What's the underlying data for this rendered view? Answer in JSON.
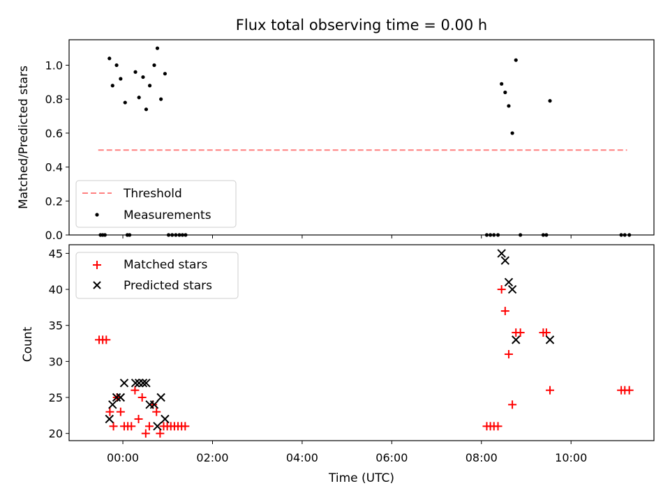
{
  "colors": {
    "threshold": "#ff7f7f",
    "measurement": "#000000",
    "matched": "#ff0000",
    "predicted": "#000000"
  },
  "chart_data": [
    {
      "type": "scatter",
      "title": "Flux total observing time = 0.00 h",
      "ylabel": "Matched/Predicted stars",
      "xlabel": "",
      "xlim": [
        -1.2,
        11.85
      ],
      "ylim": [
        0,
        1.15
      ],
      "yticks": [
        0.0,
        0.2,
        0.4,
        0.6,
        0.8,
        1.0
      ],
      "ytick_labels": [
        "0.0",
        "0.2",
        "0.4",
        "0.6",
        "0.8",
        "1.0"
      ],
      "xticks": [
        0,
        2,
        4,
        6,
        8,
        10
      ],
      "legend_position": "lower-left",
      "series": [
        {
          "name": "Threshold",
          "kind": "line",
          "style": "dashed",
          "x": [
            -0.55,
            11.25
          ],
          "y": [
            0.5,
            0.5
          ]
        },
        {
          "name": "Measurements",
          "kind": "dots",
          "x": [
            -0.5,
            -0.45,
            -0.4,
            -0.3,
            -0.23,
            -0.14,
            -0.05,
            0.05,
            0.1,
            0.15,
            0.28,
            0.36,
            0.45,
            0.52,
            0.6,
            0.7,
            0.77,
            0.85,
            0.94,
            1.02,
            1.1,
            1.18,
            1.26,
            1.33,
            1.4,
            8.12,
            8.2,
            8.28,
            8.37,
            8.45,
            8.53,
            8.61,
            8.69,
            8.77,
            8.87,
            9.38,
            9.45,
            9.53,
            11.12,
            11.2,
            11.3
          ],
          "y": [
            0,
            0,
            0,
            1.04,
            0.88,
            1.0,
            0.92,
            0.78,
            0,
            0,
            0.96,
            0.81,
            0.93,
            0.74,
            0.88,
            1.0,
            1.1,
            0.8,
            0.95,
            0,
            0,
            0,
            0,
            0,
            0,
            0,
            0,
            0,
            0,
            0.89,
            0.84,
            0.76,
            0.6,
            1.03,
            0,
            0,
            0,
            0.79,
            0,
            0,
            0
          ]
        }
      ]
    },
    {
      "type": "scatter",
      "title": "",
      "ylabel": "Count",
      "xlabel": "Time (UTC)",
      "xlim": [
        -1.2,
        11.85
      ],
      "ylim": [
        19,
        46.2
      ],
      "yticks": [
        20,
        25,
        30,
        35,
        40,
        45
      ],
      "ytick_labels": [
        "20",
        "25",
        "30",
        "35",
        "40",
        "45"
      ],
      "xticks": [
        0,
        2,
        4,
        6,
        8,
        10
      ],
      "xtick_labels": [
        "00:00",
        "02:00",
        "04:00",
        "06:00",
        "08:00",
        "10:00"
      ],
      "legend_position": "top-left",
      "series": [
        {
          "name": "Matched stars",
          "marker": "plus",
          "x": [
            -0.53,
            -0.45,
            -0.37,
            -0.29,
            -0.21,
            -0.13,
            -0.05,
            0.03,
            0.11,
            0.19,
            0.27,
            0.35,
            0.43,
            0.51,
            0.59,
            0.67,
            0.75,
            0.83,
            0.91,
            0.99,
            1.07,
            1.15,
            1.23,
            1.31,
            1.39,
            8.12,
            8.2,
            8.28,
            8.37,
            8.45,
            8.53,
            8.61,
            8.69,
            8.77,
            8.87,
            9.38,
            9.45,
            9.53,
            11.12,
            11.2,
            11.3
          ],
          "y": [
            33,
            33,
            33,
            23,
            21,
            25,
            23,
            21,
            21,
            21,
            26,
            22,
            25,
            20,
            21,
            24,
            23,
            20,
            21,
            21,
            21,
            21,
            21,
            21,
            21,
            21,
            21,
            21,
            21,
            40,
            37,
            31,
            24,
            34,
            34,
            34,
            34,
            26,
            26,
            26,
            26
          ]
        },
        {
          "name": "Predicted stars",
          "marker": "x",
          "x": [
            -0.3,
            -0.23,
            -0.14,
            -0.05,
            0.03,
            0.28,
            0.36,
            0.45,
            0.52,
            0.6,
            0.7,
            0.77,
            0.85,
            0.94,
            8.45,
            8.53,
            8.61,
            8.69,
            8.77,
            9.53
          ],
          "y": [
            22,
            24,
            25,
            25,
            27,
            27,
            27,
            27,
            27,
            24,
            24,
            21,
            25,
            22,
            45,
            44,
            41,
            40,
            33,
            33
          ]
        }
      ]
    }
  ]
}
